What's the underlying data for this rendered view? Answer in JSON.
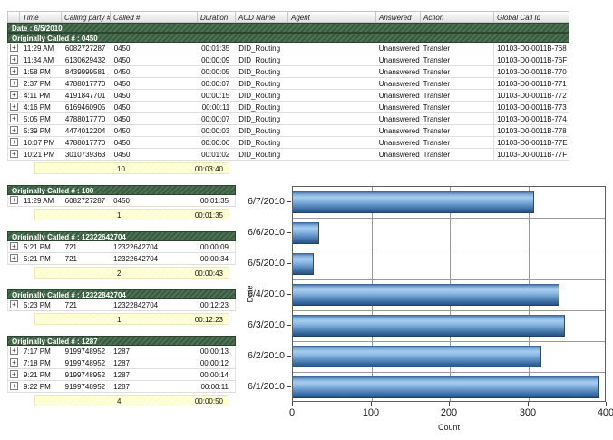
{
  "table": {
    "columns": [
      "",
      "Time",
      "Calling party #",
      "Called #",
      "Duration",
      "ACD Name",
      "Agent",
      "Answered",
      "Action",
      "Global Call Id"
    ],
    "date_band": "Date : 6/5/2010",
    "expand_icon": "+",
    "groups": [
      {
        "label": "Originally Called # : 0450",
        "wide": true,
        "rows": [
          [
            "11:29 AM",
            "6082727287",
            "0450",
            "00:01:35",
            "DID_Routing",
            "",
            "Unanswered",
            "Transfer",
            "10103-D0-0011B-768"
          ],
          [
            "11:34 AM",
            "6130629432",
            "0450",
            "00:00:09",
            "DID_Routing",
            "",
            "Unanswered",
            "Transfer",
            "10103-D0-0011B-76F"
          ],
          [
            "1:58 PM",
            "8439999581",
            "0450",
            "00:00:05",
            "DID_Routing",
            "",
            "Unanswered",
            "Transfer",
            "10103-D0-0011B-770"
          ],
          [
            "2:37 PM",
            "4788017770",
            "0450",
            "00:00:07",
            "DID_Routing",
            "",
            "Unanswered",
            "Transfer",
            "10103-D0-0011B-771"
          ],
          [
            "4:11 PM",
            "4191847701",
            "0450",
            "00:00:15",
            "DID_Routing",
            "",
            "Unanswered",
            "Transfer",
            "10103-D0-0011B-772"
          ],
          [
            "4:16 PM",
            "6169460905",
            "0450",
            "00:00:11",
            "DID_Routing",
            "",
            "Unanswered",
            "Transfer",
            "10103-D0-0011B-773"
          ],
          [
            "5:05 PM",
            "4788017770",
            "0450",
            "00:00:07",
            "DID_Routing",
            "",
            "Unanswered",
            "Transfer",
            "10103-D0-0011B-774"
          ],
          [
            "5:39 PM",
            "4474012204",
            "0450",
            "00:00:03",
            "DID_Routing",
            "",
            "Unanswered",
            "Transfer",
            "10103-D0-0011B-778"
          ],
          [
            "10:07 PM",
            "4788017770",
            "0450",
            "00:00:06",
            "DID_Routing",
            "",
            "Unanswered",
            "Transfer",
            "10103-D0-0011B-77E"
          ],
          [
            "10:21 PM",
            "3010739363",
            "0450",
            "00:01:02",
            "DID_Routing",
            "",
            "Unanswered",
            "Transfer",
            "10103-D0-0011B-77F"
          ]
        ],
        "summary": {
          "count": "10",
          "total": "00:03:40"
        }
      },
      {
        "label": "Originally Called # : 100",
        "wide": false,
        "rows": [
          [
            "11:29 AM",
            "6082727287",
            "0450",
            "00:01:35"
          ]
        ],
        "summary": {
          "count": "1",
          "total": "00:01:35"
        }
      },
      {
        "label": "Originally Called # : 12322642704",
        "wide": false,
        "rows": [
          [
            "5:21 PM",
            "721",
            "12322642704",
            "00:00:09"
          ],
          [
            "5:21 PM",
            "721",
            "12322642704",
            "00:00:34"
          ]
        ],
        "summary": {
          "count": "2",
          "total": "00:00:43"
        }
      },
      {
        "label": "Originally Called # : 12322842704",
        "wide": false,
        "rows": [
          [
            "5:23 PM",
            "721",
            "12322842704",
            "00:12:23"
          ]
        ],
        "summary": {
          "count": "1",
          "total": "00:12:23"
        }
      },
      {
        "label": "Originally Called # : 1287",
        "wide": false,
        "rows": [
          [
            "7:17 PM",
            "9199748952",
            "1287",
            "00:00:13"
          ],
          [
            "7:18 PM",
            "9199748952",
            "1287",
            "00:00:12"
          ],
          [
            "9:21 PM",
            "9199748952",
            "1287",
            "00:00:14"
          ],
          [
            "9:22 PM",
            "9199748952",
            "1287",
            "00:00:11"
          ]
        ],
        "summary": {
          "count": "4",
          "total": "00:00:50"
        }
      }
    ]
  },
  "chart_data": {
    "type": "bar",
    "orientation": "horizontal",
    "categories": [
      "6/7/2010",
      "6/6/2010",
      "6/5/2010",
      "6/4/2010",
      "6/3/2010",
      "6/2/2010",
      "6/1/2010"
    ],
    "values": [
      308,
      33,
      27,
      340,
      347,
      317,
      391
    ],
    "title": "",
    "xlabel": "Count",
    "ylabel": "Date",
    "xlim": [
      0,
      400
    ],
    "xticks": [
      0,
      100,
      200,
      300,
      400
    ],
    "grid": true,
    "legend": "none"
  },
  "colors": {
    "group_band_green": "#3a5a40",
    "group_band_green_light": "#4d7254",
    "summary_yellow": "#ffffcc",
    "bar_blue_light": "#a7cdf0",
    "bar_blue_dark": "#2b5283",
    "grid_gray": "#9a9a9a"
  }
}
